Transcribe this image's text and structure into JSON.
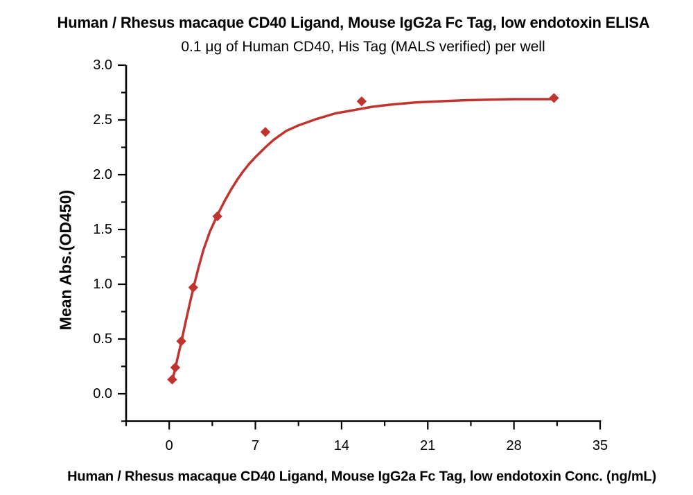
{
  "chart_data": {
    "type": "scatter",
    "title": "Human / Rhesus macaque CD40 Ligand, Mouse IgG2a Fc Tag, low endotoxin ELISA",
    "subtitle": "0.1 μg of Human CD40, His Tag (MALS verified) per well",
    "xlabel": "Human / Rhesus macaque CD40 Ligand, Mouse IgG2a Fc Tag, low endotoxin Conc. (ng/mL)",
    "ylabel": "Mean Abs.(OD450)",
    "grid": false,
    "legend_position": "none",
    "xlim": [
      -3.5,
      35
    ],
    "ylim": [
      -0.25,
      3.0
    ],
    "x_major_ticks": [
      0,
      7,
      14,
      21,
      28,
      35
    ],
    "x_minor_ticks": [
      -3.5,
      3.5,
      10.5,
      17.5,
      24.5,
      31.5
    ],
    "y_major_ticks": [
      0.0,
      0.5,
      1.0,
      1.5,
      2.0,
      2.5,
      3.0
    ],
    "y_minor_ticks": [
      -0.25,
      0.25,
      0.75,
      1.25,
      1.75,
      2.25,
      2.75
    ],
    "marker_shape": "diamond",
    "marker_color": "#c0342f",
    "line_color": "#c0342f",
    "axis_color": "#000000",
    "series": [
      {
        "points": [
          {
            "x": 0.24,
            "y": 0.13
          },
          {
            "x": 0.49,
            "y": 0.24
          },
          {
            "x": 0.98,
            "y": 0.48
          },
          {
            "x": 1.95,
            "y": 0.97
          },
          {
            "x": 3.91,
            "y": 1.62
          },
          {
            "x": 7.81,
            "y": 2.39
          },
          {
            "x": 15.63,
            "y": 2.67
          },
          {
            "x": 31.25,
            "y": 2.7
          }
        ]
      }
    ],
    "fit_curve": {
      "x": [
        0.23,
        0.5,
        0.75,
        1.0,
        1.3,
        1.6,
        1.95,
        2.4,
        2.8,
        3.3,
        3.91,
        4.5,
        5.0,
        5.5,
        6.0,
        6.5,
        7.0,
        7.81,
        8.5,
        9.5,
        10.5,
        12,
        13.5,
        15,
        16.5,
        18,
        20,
        22,
        24,
        26,
        28,
        31.25
      ],
      "y": [
        0.11,
        0.24,
        0.36,
        0.48,
        0.64,
        0.79,
        0.96,
        1.16,
        1.32,
        1.48,
        1.63,
        1.76,
        1.86,
        1.95,
        2.03,
        2.1,
        2.16,
        2.25,
        2.32,
        2.4,
        2.45,
        2.51,
        2.56,
        2.59,
        2.62,
        2.64,
        2.66,
        2.67,
        2.68,
        2.685,
        2.69,
        2.69
      ]
    }
  }
}
